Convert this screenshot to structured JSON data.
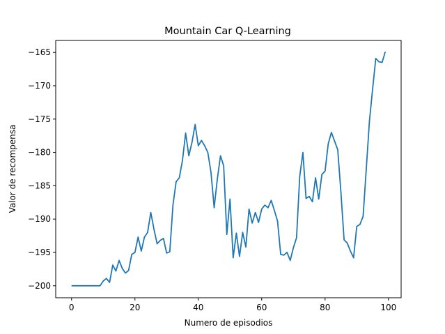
{
  "chart_data": {
    "type": "line",
    "title": "Mountain Car Q-Learning",
    "xlabel": "Numero de episodios",
    "ylabel": "Valor de recompensa",
    "xlim": [
      -5,
      104
    ],
    "ylim": [
      -201.8,
      -163.2
    ],
    "xticks": [
      0,
      20,
      40,
      60,
      80,
      100
    ],
    "yticks": [
      -200,
      -195,
      -190,
      -185,
      -180,
      -175,
      -170,
      -165
    ],
    "grid": false,
    "color": "#1f77b4",
    "series": [
      {
        "x": [
          0,
          1,
          2,
          3,
          4,
          5,
          6,
          7,
          8,
          9,
          10,
          11,
          12,
          13,
          14,
          15,
          16,
          17,
          18,
          19,
          20,
          21,
          22,
          23,
          24,
          25,
          26,
          27,
          28,
          29,
          30,
          31,
          32,
          33,
          34,
          35,
          36,
          37,
          38,
          39,
          40,
          41,
          42,
          43,
          44,
          45,
          46,
          47,
          48,
          49,
          50,
          51,
          52,
          53,
          54,
          55,
          56,
          57,
          58,
          59,
          60,
          61,
          62,
          63,
          64,
          65,
          66,
          67,
          68,
          69,
          70,
          71,
          72,
          73,
          74,
          75,
          76,
          77,
          78,
          79,
          80,
          81,
          82,
          83,
          84,
          85,
          86,
          87,
          88,
          89,
          90,
          91,
          92,
          93,
          94,
          95,
          96,
          97,
          98,
          99
        ],
        "values": [
          -200,
          -200,
          -200,
          -200,
          -200,
          -200,
          -200,
          -200,
          -200,
          -200,
          -199.3,
          -198.9,
          -199.5,
          -196.9,
          -197.8,
          -196.2,
          -197.4,
          -198.1,
          -197.7,
          -195.3,
          -195.0,
          -192.7,
          -194.8,
          -192.7,
          -192.0,
          -189.0,
          -191.5,
          -193.7,
          -193.2,
          -192.9,
          -195.1,
          -194.9,
          -187.9,
          -184.4,
          -183.8,
          -181.2,
          -177.1,
          -180.5,
          -178.5,
          -175.8,
          -179.0,
          -178.2,
          -179.0,
          -180.0,
          -183.0,
          -188.3,
          -184.0,
          -180.5,
          -182.0,
          -192.3,
          -187.0,
          -195.8,
          -192.1,
          -195.6,
          -192.0,
          -194.2,
          -188.5,
          -190.6,
          -189.0,
          -190.5,
          -188.5,
          -187.9,
          -188.3,
          -187.2,
          -188.7,
          -190.3,
          -195.3,
          -195.4,
          -195.0,
          -196.2,
          -194.3,
          -192.8,
          -183.6,
          -180.0,
          -186.9,
          -186.6,
          -187.4,
          -183.8,
          -187.0,
          -183.3,
          -182.8,
          -178.7,
          -177.0,
          -178.3,
          -179.6,
          -186.0,
          -193.1,
          -193.6,
          -194.8,
          -195.8,
          -191.1,
          -190.8,
          -189.6,
          -182.5,
          -175.3,
          -170.5,
          -165.9,
          -166.4,
          -166.5,
          -164.9
        ]
      }
    ]
  }
}
